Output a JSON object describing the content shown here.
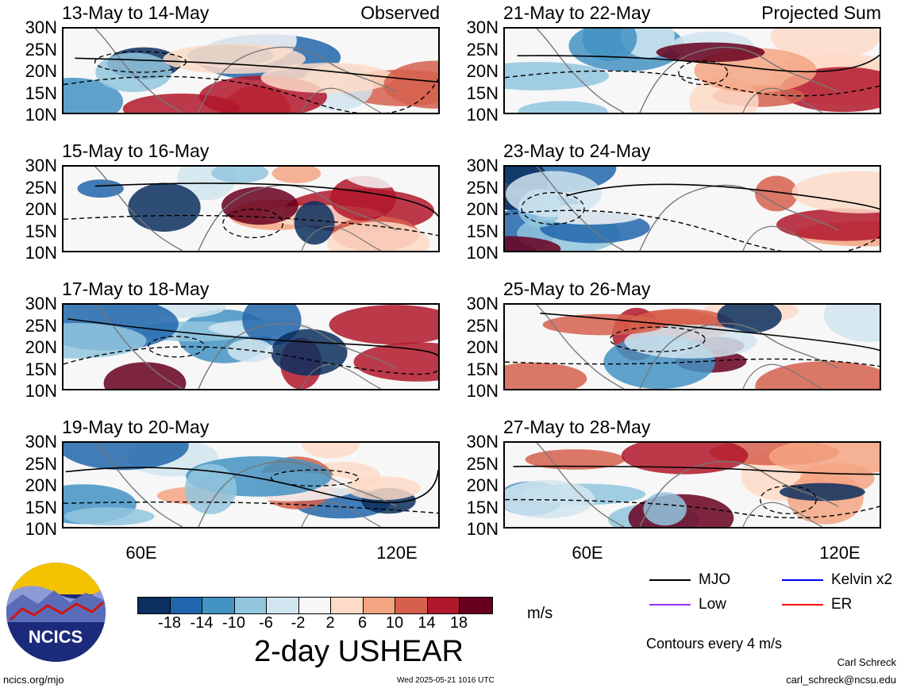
{
  "panels": [
    {
      "title": "13-May to 14-May",
      "label": "Observed",
      "col": 0,
      "row": 0,
      "seed": 1
    },
    {
      "title": "15-May to 16-May",
      "label": "",
      "col": 0,
      "row": 1,
      "seed": 2
    },
    {
      "title": "17-May to 18-May",
      "label": "",
      "col": 0,
      "row": 2,
      "seed": 3
    },
    {
      "title": "19-May to 20-May",
      "label": "",
      "col": 0,
      "row": 3,
      "seed": 4
    },
    {
      "title": "21-May to 22-May",
      "label": "Projected Sum",
      "col": 1,
      "row": 0,
      "seed": 5
    },
    {
      "title": "23-May to 24-May",
      "label": "",
      "col": 1,
      "row": 1,
      "seed": 6
    },
    {
      "title": "25-May to 26-May",
      "label": "",
      "col": 1,
      "row": 2,
      "seed": 7
    },
    {
      "title": "27-May to 28-May",
      "label": "",
      "col": 1,
      "row": 3,
      "seed": 8
    }
  ],
  "lat_labels": [
    "30N",
    "25N",
    "20N",
    "15N",
    "10N"
  ],
  "lon_labels": [
    "60E",
    "120E"
  ],
  "colorbar": {
    "ticks": [
      "-18",
      "-14",
      "-10",
      "-6",
      "-2",
      "2",
      "6",
      "10",
      "14",
      "18"
    ],
    "colors": [
      "#0b2f5e",
      "#2166ac",
      "#4393c3",
      "#92c5de",
      "#d1e5f0",
      "#f7f7f7",
      "#fddbc7",
      "#f4a582",
      "#d6604d",
      "#b2182b",
      "#67001f"
    ],
    "unit": "m/s",
    "title": "2-day USHEAR"
  },
  "legend": {
    "mjo": "MJO",
    "kelvin": "Kelvin x2",
    "low": "Low",
    "er": "ER",
    "contours": "Contours every 4 m/s",
    "colors": {
      "mjo": "#000000",
      "kelvin": "#0000ff",
      "low": "#9b30ff",
      "er": "#ff0000"
    }
  },
  "credits": {
    "author": "Carl Schreck",
    "email": "carl_schreck@ncsu.edu",
    "site": "ncics.org/mjo",
    "timestamp": "Wed 2025-05-21 1016 UTC",
    "logo_text": "NCICS"
  },
  "chart_data": {
    "type": "heatmap",
    "variable": "2-day USHEAR",
    "unit": "m/s",
    "lat_range": [
      "10N",
      "30N"
    ],
    "lon_ticks": [
      "60E",
      "120E"
    ],
    "contour_interval": "4 m/s",
    "color_levels": [
      -18,
      -14,
      -10,
      -6,
      -2,
      2,
      6,
      10,
      14,
      18
    ]
  }
}
